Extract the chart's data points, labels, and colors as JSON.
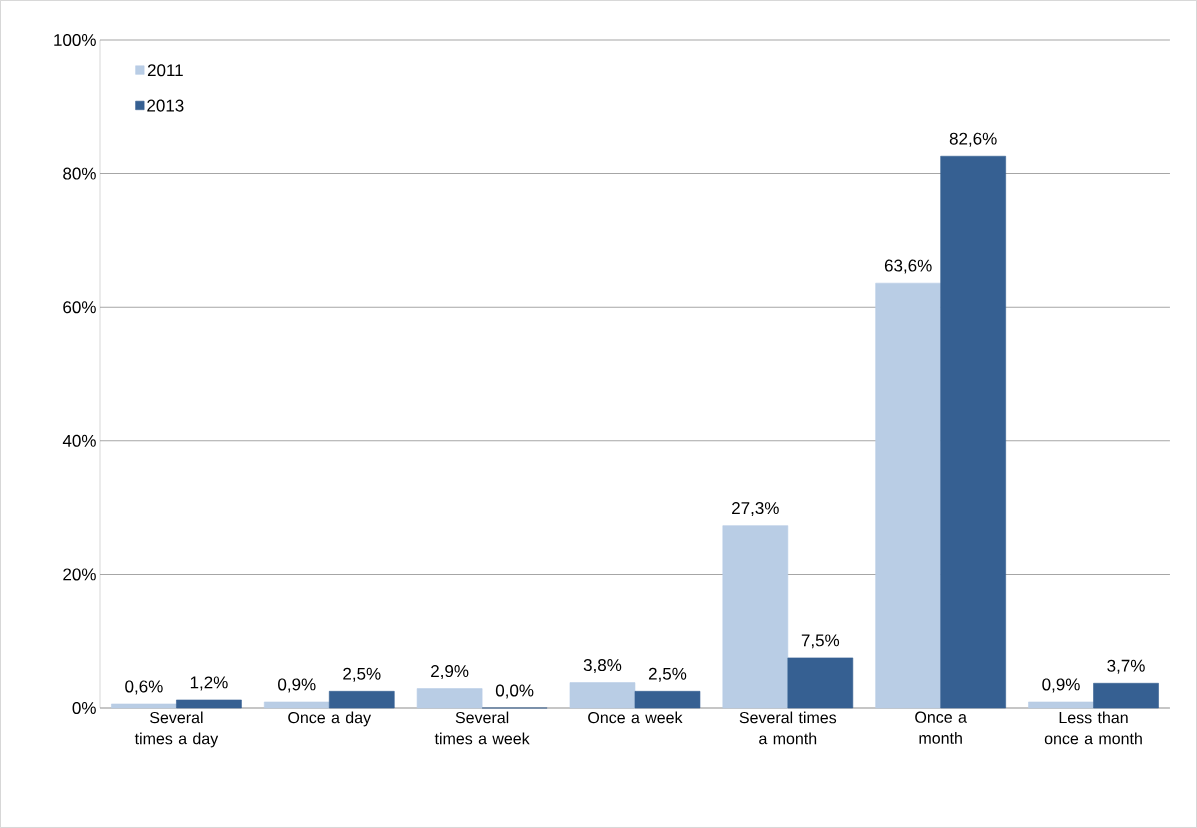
{
  "chart_data": {
    "type": "bar",
    "categories": [
      "Several times a day",
      "Once a day",
      "Several times a week",
      "Once a week",
      "Several times a month",
      "Once a month",
      "Less than once a month"
    ],
    "series": [
      {
        "name": "2011",
        "color": "#b9cde5",
        "values": [
          0.6,
          0.9,
          2.9,
          3.8,
          27.3,
          63.6,
          0.9
        ],
        "value_labels": [
          "0,6%",
          "0,9%",
          "2,9%",
          "3,8%",
          "27,3%",
          "63,6%",
          "0,9%"
        ]
      },
      {
        "name": "2013",
        "color": "#366092",
        "values": [
          1.2,
          2.5,
          0.0,
          2.5,
          7.5,
          82.6,
          3.7
        ],
        "value_labels": [
          "1,2%",
          "2,5%",
          "0,0%",
          "2,5%",
          "7,5%",
          "82,6%",
          "3,7%"
        ]
      }
    ],
    "ylim": [
      0,
      100
    ],
    "yticks": [
      {
        "value": 0,
        "label": "0%"
      },
      {
        "value": 20,
        "label": "20%"
      },
      {
        "value": 40,
        "label": "40%"
      },
      {
        "value": 60,
        "label": "60%"
      },
      {
        "value": 80,
        "label": "80%"
      },
      {
        "value": 100,
        "label": "100%"
      }
    ],
    "grid": "y",
    "legend": "top left"
  }
}
